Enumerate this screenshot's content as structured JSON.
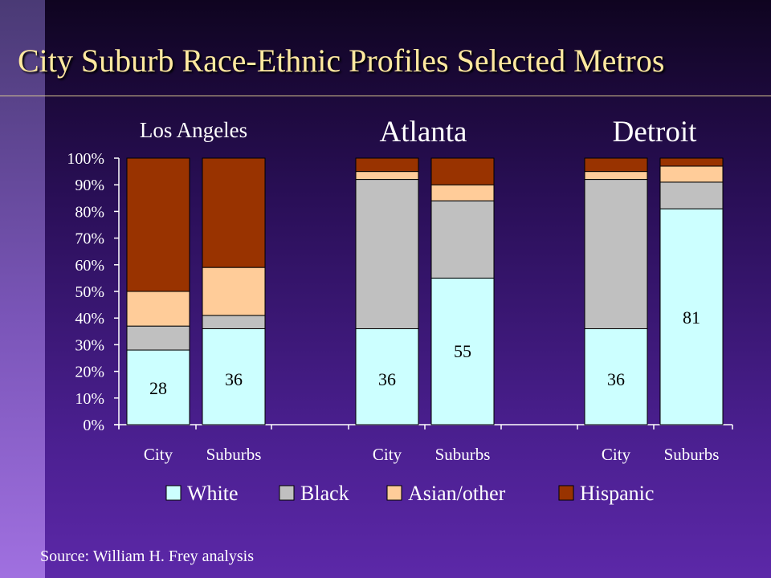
{
  "slide": {
    "title": "City Suburb Race-Ethnic Profiles Selected Metros",
    "source": "Source: William H. Frey analysis"
  },
  "chart_data": {
    "type": "bar",
    "stacked": true,
    "groups": [
      {
        "name": "Los Angeles",
        "categories": [
          "City",
          "Suburbs"
        ]
      },
      {
        "name": "Atlanta",
        "categories": [
          "City",
          "Suburbs"
        ]
      },
      {
        "name": "Detroit",
        "categories": [
          "City",
          "Suburbs"
        ]
      }
    ],
    "categories": [
      "City",
      "Suburbs",
      "City",
      "Suburbs",
      "City",
      "Suburbs"
    ],
    "series": [
      {
        "name": "White",
        "color": "#ccffff",
        "values": [
          28,
          36,
          36,
          55,
          36,
          81
        ]
      },
      {
        "name": "Black",
        "color": "#c0c0c0",
        "values": [
          9,
          5,
          56,
          29,
          56,
          10
        ]
      },
      {
        "name": "Asian/other",
        "color": "#ffcc99",
        "values": [
          13,
          18,
          3,
          6,
          3,
          6
        ]
      },
      {
        "name": "Hispanic",
        "color": "#993300",
        "values": [
          50,
          41,
          5,
          10,
          5,
          3
        ]
      }
    ],
    "data_labels": [
      "28",
      "36",
      "36",
      "55",
      "36",
      "81"
    ],
    "y_ticks": [
      "0%",
      "10%",
      "20%",
      "30%",
      "40%",
      "50%",
      "60%",
      "70%",
      "80%",
      "90%",
      "100%"
    ],
    "ylim": [
      0,
      100
    ],
    "grid": false,
    "legend": "bottom",
    "text_color": "#ffffff",
    "bar_outline": "#000000"
  }
}
